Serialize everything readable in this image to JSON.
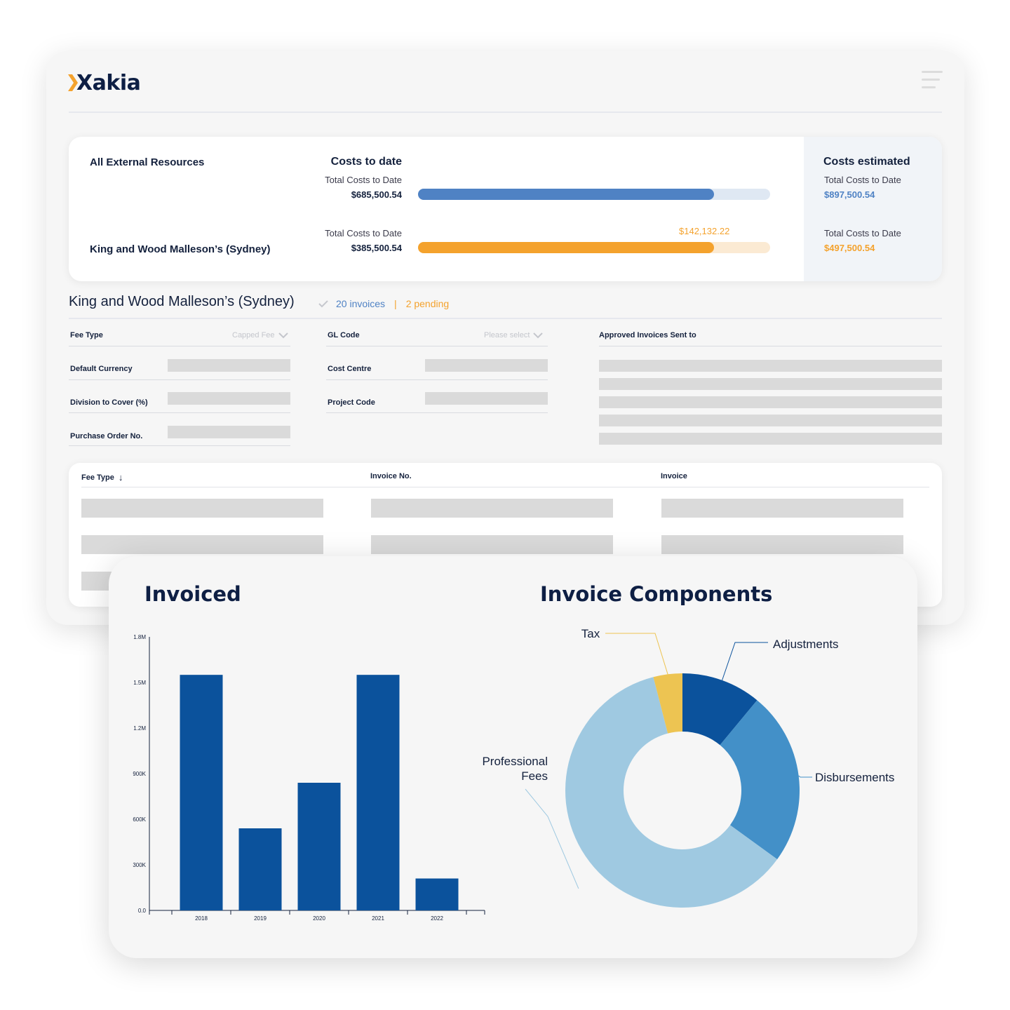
{
  "app": {
    "logo_text": "Xakia"
  },
  "summary": {
    "all_resources_label": "All External Resources",
    "firm_label": "King and Wood Malleson’s (Sydney)",
    "costs_to_date_heading": "Costs to date",
    "costs_estimated_heading": "Costs estimated",
    "rows": [
      {
        "sub_label": "Total Costs to Date",
        "value": "$685,500.54",
        "progress": 0.84,
        "color": "#4f82c4",
        "track": "#dfe8f3",
        "estimate_sub_label": "Total Costs to Date",
        "estimate_value": "$897,500.54",
        "estimate_color": "#4f82c4",
        "overflow_label": ""
      },
      {
        "sub_label": "Total Costs to Date",
        "value": "$385,500.54",
        "progress": 0.84,
        "color": "#f4a22d",
        "track": "#fbead3",
        "estimate_sub_label": "Total Costs to Date",
        "estimate_value": "$497,500.54",
        "estimate_color": "#f4a22d",
        "overflow_label": "$142,132.22"
      }
    ]
  },
  "firm_section": {
    "title": "King and Wood Malleson’s (Sydney)",
    "invoices": "20 invoices",
    "separator": "|",
    "pending": "2 pending",
    "fields": {
      "fee_type": {
        "label": "Fee Type",
        "value": "Capped Fee"
      },
      "gl_code": {
        "label": "GL Code",
        "value": "Please select"
      },
      "approved_sent_to": {
        "label": "Approved Invoices Sent to"
      },
      "default_currency": {
        "label": "Default Currency"
      },
      "cost_centre": {
        "label": "Cost Centre"
      },
      "division_to_cover": {
        "label": "Division to Cover (%)"
      },
      "project_code": {
        "label": "Project Code"
      },
      "purchase_order": {
        "label": "Purchase Order No."
      }
    }
  },
  "invoice_table": {
    "columns": [
      "Fee Type",
      "Invoice No.",
      "Invoice"
    ],
    "sort_indicator": "↓"
  },
  "colors": {
    "navy": "#0e1f44",
    "bar": "#0b529c",
    "blue_accent": "#4f82c4",
    "orange_accent": "#f4a22d"
  },
  "chart_data": [
    {
      "type": "bar",
      "title": "Invoiced",
      "categories": [
        "2018",
        "2019",
        "2020",
        "2021",
        "2022"
      ],
      "values": [
        1550000,
        540000,
        840000,
        1550000,
        210000
      ],
      "ylim": [
        0,
        1800000
      ],
      "yticks": [
        0,
        300000,
        600000,
        900000,
        1200000,
        1500000,
        1800000
      ],
      "ytick_labels": [
        "0.0",
        "300K",
        "600K",
        "900K",
        "1.2M",
        "1.5M",
        "1.8M"
      ],
      "xlabel": "",
      "ylabel": "",
      "color": "#0b529c",
      "grid": false
    },
    {
      "type": "pie",
      "title": "Invoice Components",
      "donut": true,
      "slices": [
        {
          "label": "Adjustments",
          "value": 11,
          "color": "#0b529c"
        },
        {
          "label": "Disbursements",
          "value": 24,
          "color": "#4390c8"
        },
        {
          "label": "Professional Fees",
          "value": 61,
          "color": "#9fc9e1"
        },
        {
          "label": "Tax",
          "value": 4,
          "color": "#edc452"
        }
      ]
    }
  ]
}
